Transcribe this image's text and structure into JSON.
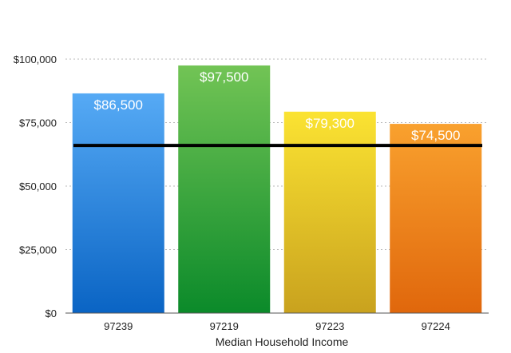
{
  "chart_data": {
    "type": "bar",
    "title": "",
    "xlabel": "Median Household Income",
    "ylabel": "",
    "categories": [
      "97239",
      "97219",
      "97223",
      "97224"
    ],
    "values": [
      86500,
      97500,
      79300,
      74500
    ],
    "data_labels": [
      "$86,500",
      "$97,500",
      "$79,300",
      "$74,500"
    ],
    "ylim": [
      0,
      100000
    ],
    "y_ticks": [
      0,
      25000,
      50000,
      75000,
      100000
    ],
    "y_tick_labels": [
      "$0",
      "$25,000",
      "$50,000",
      "$75,000",
      "$100,000"
    ],
    "reference_line": {
      "value": 66000
    },
    "bar_colors": [
      {
        "top": "#56aaf5",
        "bottom": "#0a64c4"
      },
      {
        "top": "#72c455",
        "bottom": "#0b8a2a"
      },
      {
        "top": "#fbe332",
        "bottom": "#c9a21e"
      },
      {
        "top": "#f9a12e",
        "bottom": "#e0670c"
      }
    ],
    "grid": true,
    "legend": "none"
  }
}
